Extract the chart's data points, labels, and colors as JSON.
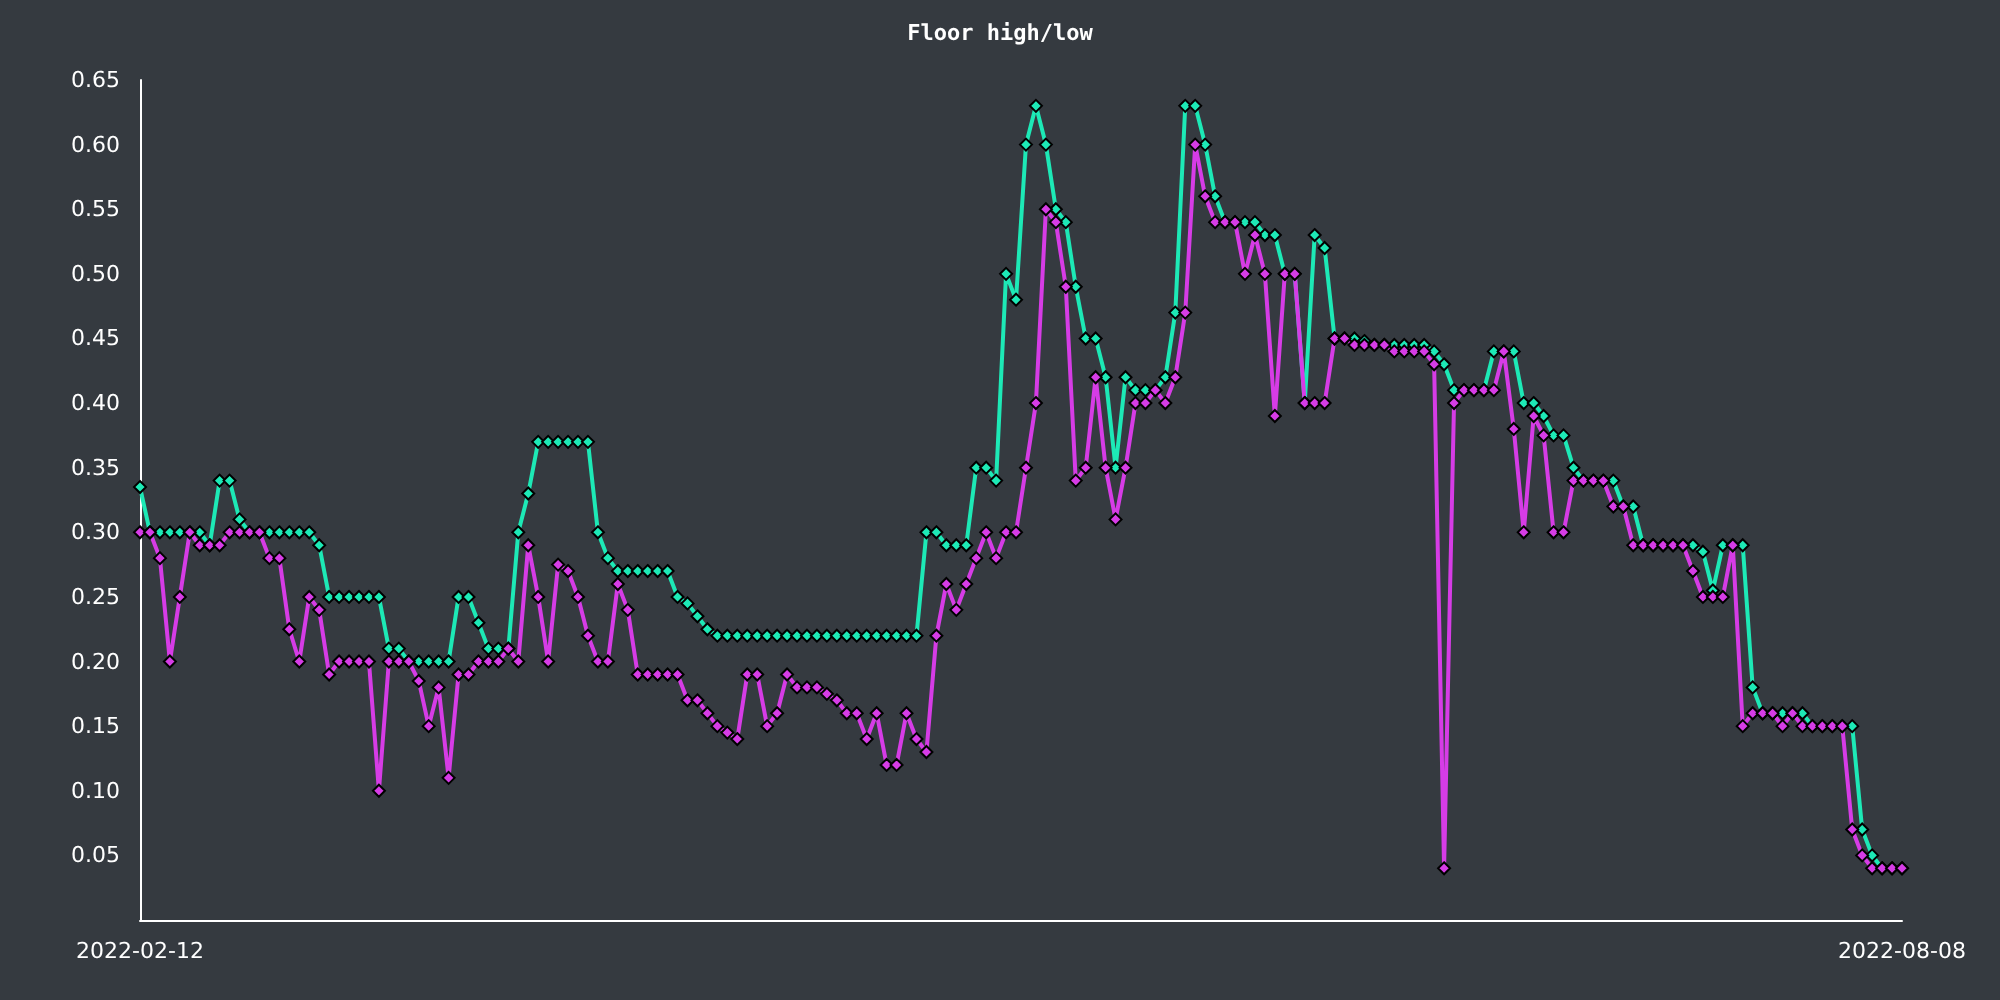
{
  "chart_data": {
    "type": "line",
    "title": "Floor high/low",
    "categories": [
      "2022-02-12",
      null,
      null,
      null,
      null,
      null,
      null,
      null,
      null,
      null,
      null,
      null,
      null,
      null,
      null,
      null,
      null,
      null,
      null,
      null,
      null,
      null,
      null,
      null,
      null,
      null,
      null,
      null,
      null,
      null,
      null,
      null,
      null,
      null,
      null,
      null,
      null,
      null,
      null,
      null,
      null,
      null,
      null,
      null,
      null,
      null,
      null,
      null,
      null,
      null,
      null,
      null,
      null,
      null,
      null,
      null,
      null,
      null,
      null,
      null,
      null,
      null,
      null,
      null,
      null,
      null,
      null,
      null,
      null,
      null,
      null,
      null,
      null,
      null,
      null,
      null,
      null,
      null,
      null,
      null,
      null,
      null,
      null,
      null,
      null,
      null,
      null,
      null,
      null,
      null,
      null,
      null,
      null,
      null,
      null,
      null,
      null,
      null,
      null,
      null,
      null,
      null,
      null,
      null,
      null,
      null,
      null,
      null,
      null,
      null,
      null,
      null,
      null,
      null,
      null,
      null,
      null,
      null,
      null,
      null,
      null,
      null,
      null,
      null,
      null,
      null,
      null,
      null,
      null,
      null,
      null,
      null,
      null,
      null,
      null,
      null,
      null,
      null,
      null,
      null,
      null,
      null,
      null,
      null,
      null,
      null,
      null,
      null,
      null,
      null,
      null,
      null,
      null,
      null,
      null,
      null,
      null,
      null,
      null,
      null,
      null,
      null,
      null,
      null,
      null,
      null,
      null,
      null,
      null,
      null,
      null,
      null,
      null,
      null,
      null,
      null,
      null,
      "2022-08-08"
    ],
    "series": [
      {
        "color": "#1de9b6",
        "values": [
          0.335,
          0.3,
          0.3,
          0.3,
          0.3,
          0.3,
          0.3,
          0.29,
          0.34,
          0.34,
          0.31,
          0.3,
          0.3,
          0.3,
          0.3,
          0.3,
          0.3,
          0.3,
          0.29,
          0.25,
          0.25,
          0.25,
          0.25,
          0.25,
          0.25,
          0.21,
          0.21,
          0.2,
          0.2,
          0.2,
          0.2,
          0.2,
          0.25,
          0.25,
          0.23,
          0.21,
          0.21,
          0.21,
          0.3,
          0.33,
          0.37,
          0.37,
          0.37,
          0.37,
          0.37,
          0.37,
          0.3,
          0.28,
          0.27,
          0.27,
          0.27,
          0.27,
          0.27,
          0.27,
          0.25,
          0.245,
          0.235,
          0.225,
          0.22,
          0.22,
          0.22,
          0.22,
          0.22,
          0.22,
          0.22,
          0.22,
          0.22,
          0.22,
          0.22,
          0.22,
          0.22,
          0.22,
          0.22,
          0.22,
          0.22,
          0.22,
          0.22,
          0.22,
          0.22,
          0.3,
          0.3,
          0.29,
          0.29,
          0.29,
          0.35,
          0.35,
          0.34,
          0.5,
          0.48,
          0.6,
          0.63,
          0.6,
          0.55,
          0.54,
          0.49,
          0.45,
          0.45,
          0.42,
          0.35,
          0.42,
          0.41,
          0.41,
          0.41,
          0.42,
          0.47,
          0.63,
          0.63,
          0.6,
          0.56,
          0.54,
          0.54,
          0.54,
          0.54,
          0.53,
          0.53,
          0.5,
          0.5,
          0.4,
          0.53,
          0.52,
          0.45,
          0.45,
          0.45,
          0.448,
          0.445,
          0.445,
          0.445,
          0.445,
          0.445,
          0.445,
          0.44,
          0.43,
          0.41,
          0.41,
          0.41,
          0.41,
          0.44,
          0.44,
          0.44,
          0.4,
          0.4,
          0.39,
          0.375,
          0.375,
          0.35,
          0.34,
          0.34,
          0.34,
          0.34,
          0.32,
          0.32,
          0.29,
          0.29,
          0.29,
          0.29,
          0.29,
          0.29,
          0.285,
          0.255,
          0.29,
          0.29,
          0.29,
          0.18,
          0.16,
          0.16,
          0.16,
          0.16,
          0.16,
          0.15,
          0.15,
          0.15,
          0.15,
          0.15,
          0.07,
          0.05,
          0.04,
          0.04,
          0.04
        ]
      },
      {
        "color": "#d63ce6",
        "values": [
          0.3,
          0.3,
          0.28,
          0.2,
          0.25,
          0.3,
          0.29,
          0.29,
          0.29,
          0.3,
          0.3,
          0.3,
          0.3,
          0.28,
          0.28,
          0.225,
          0.2,
          0.25,
          0.24,
          0.19,
          0.2,
          0.2,
          0.2,
          0.2,
          0.1,
          0.2,
          0.2,
          0.2,
          0.185,
          0.15,
          0.18,
          0.11,
          0.19,
          0.19,
          0.2,
          0.2,
          0.2,
          0.21,
          0.2,
          0.29,
          0.25,
          0.2,
          0.275,
          0.27,
          0.25,
          0.22,
          0.2,
          0.2,
          0.26,
          0.24,
          0.19,
          0.19,
          0.19,
          0.19,
          0.19,
          0.17,
          0.17,
          0.16,
          0.15,
          0.145,
          0.14,
          0.19,
          0.19,
          0.15,
          0.16,
          0.19,
          0.18,
          0.18,
          0.18,
          0.175,
          0.17,
          0.16,
          0.16,
          0.14,
          0.16,
          0.12,
          0.12,
          0.16,
          0.14,
          0.13,
          0.22,
          0.26,
          0.24,
          0.26,
          0.28,
          0.3,
          0.28,
          0.3,
          0.3,
          0.35,
          0.4,
          0.55,
          0.54,
          0.49,
          0.34,
          0.35,
          0.42,
          0.35,
          0.31,
          0.35,
          0.4,
          0.4,
          0.41,
          0.4,
          0.42,
          0.47,
          0.6,
          0.56,
          0.54,
          0.54,
          0.54,
          0.5,
          0.53,
          0.5,
          0.39,
          0.5,
          0.5,
          0.4,
          0.4,
          0.4,
          0.45,
          0.45,
          0.445,
          0.445,
          0.445,
          0.445,
          0.44,
          0.44,
          0.44,
          0.44,
          0.43,
          0.04,
          0.4,
          0.41,
          0.41,
          0.41,
          0.41,
          0.44,
          0.38,
          0.3,
          0.39,
          0.375,
          0.3,
          0.3,
          0.34,
          0.34,
          0.34,
          0.34,
          0.32,
          0.32,
          0.29,
          0.29,
          0.29,
          0.29,
          0.29,
          0.29,
          0.27,
          0.25,
          0.25,
          0.25,
          0.29,
          0.15,
          0.16,
          0.16,
          0.16,
          0.15,
          0.16,
          0.15,
          0.15,
          0.15,
          0.15,
          0.15,
          0.07,
          0.05,
          0.04,
          0.04,
          0.04,
          0.04
        ]
      }
    ],
    "ylim": [
      0,
      0.65
    ],
    "yticks": [
      0.05,
      {
        "value": 0.1,
        "label": "0.10"
      },
      0.15,
      {
        "value": 0.2,
        "label": "0.20"
      },
      0.25,
      {
        "value": 0.3,
        "label": "0.30"
      },
      0.35,
      {
        "value": 0.4,
        "label": "0.40"
      },
      0.45,
      {
        "value": 0.5,
        "label": "0.50"
      },
      0.55,
      {
        "value": 0.6,
        "label": "0.60"
      },
      0.65
    ],
    "grid": false,
    "marker": "diamond",
    "line_style": "solid"
  }
}
